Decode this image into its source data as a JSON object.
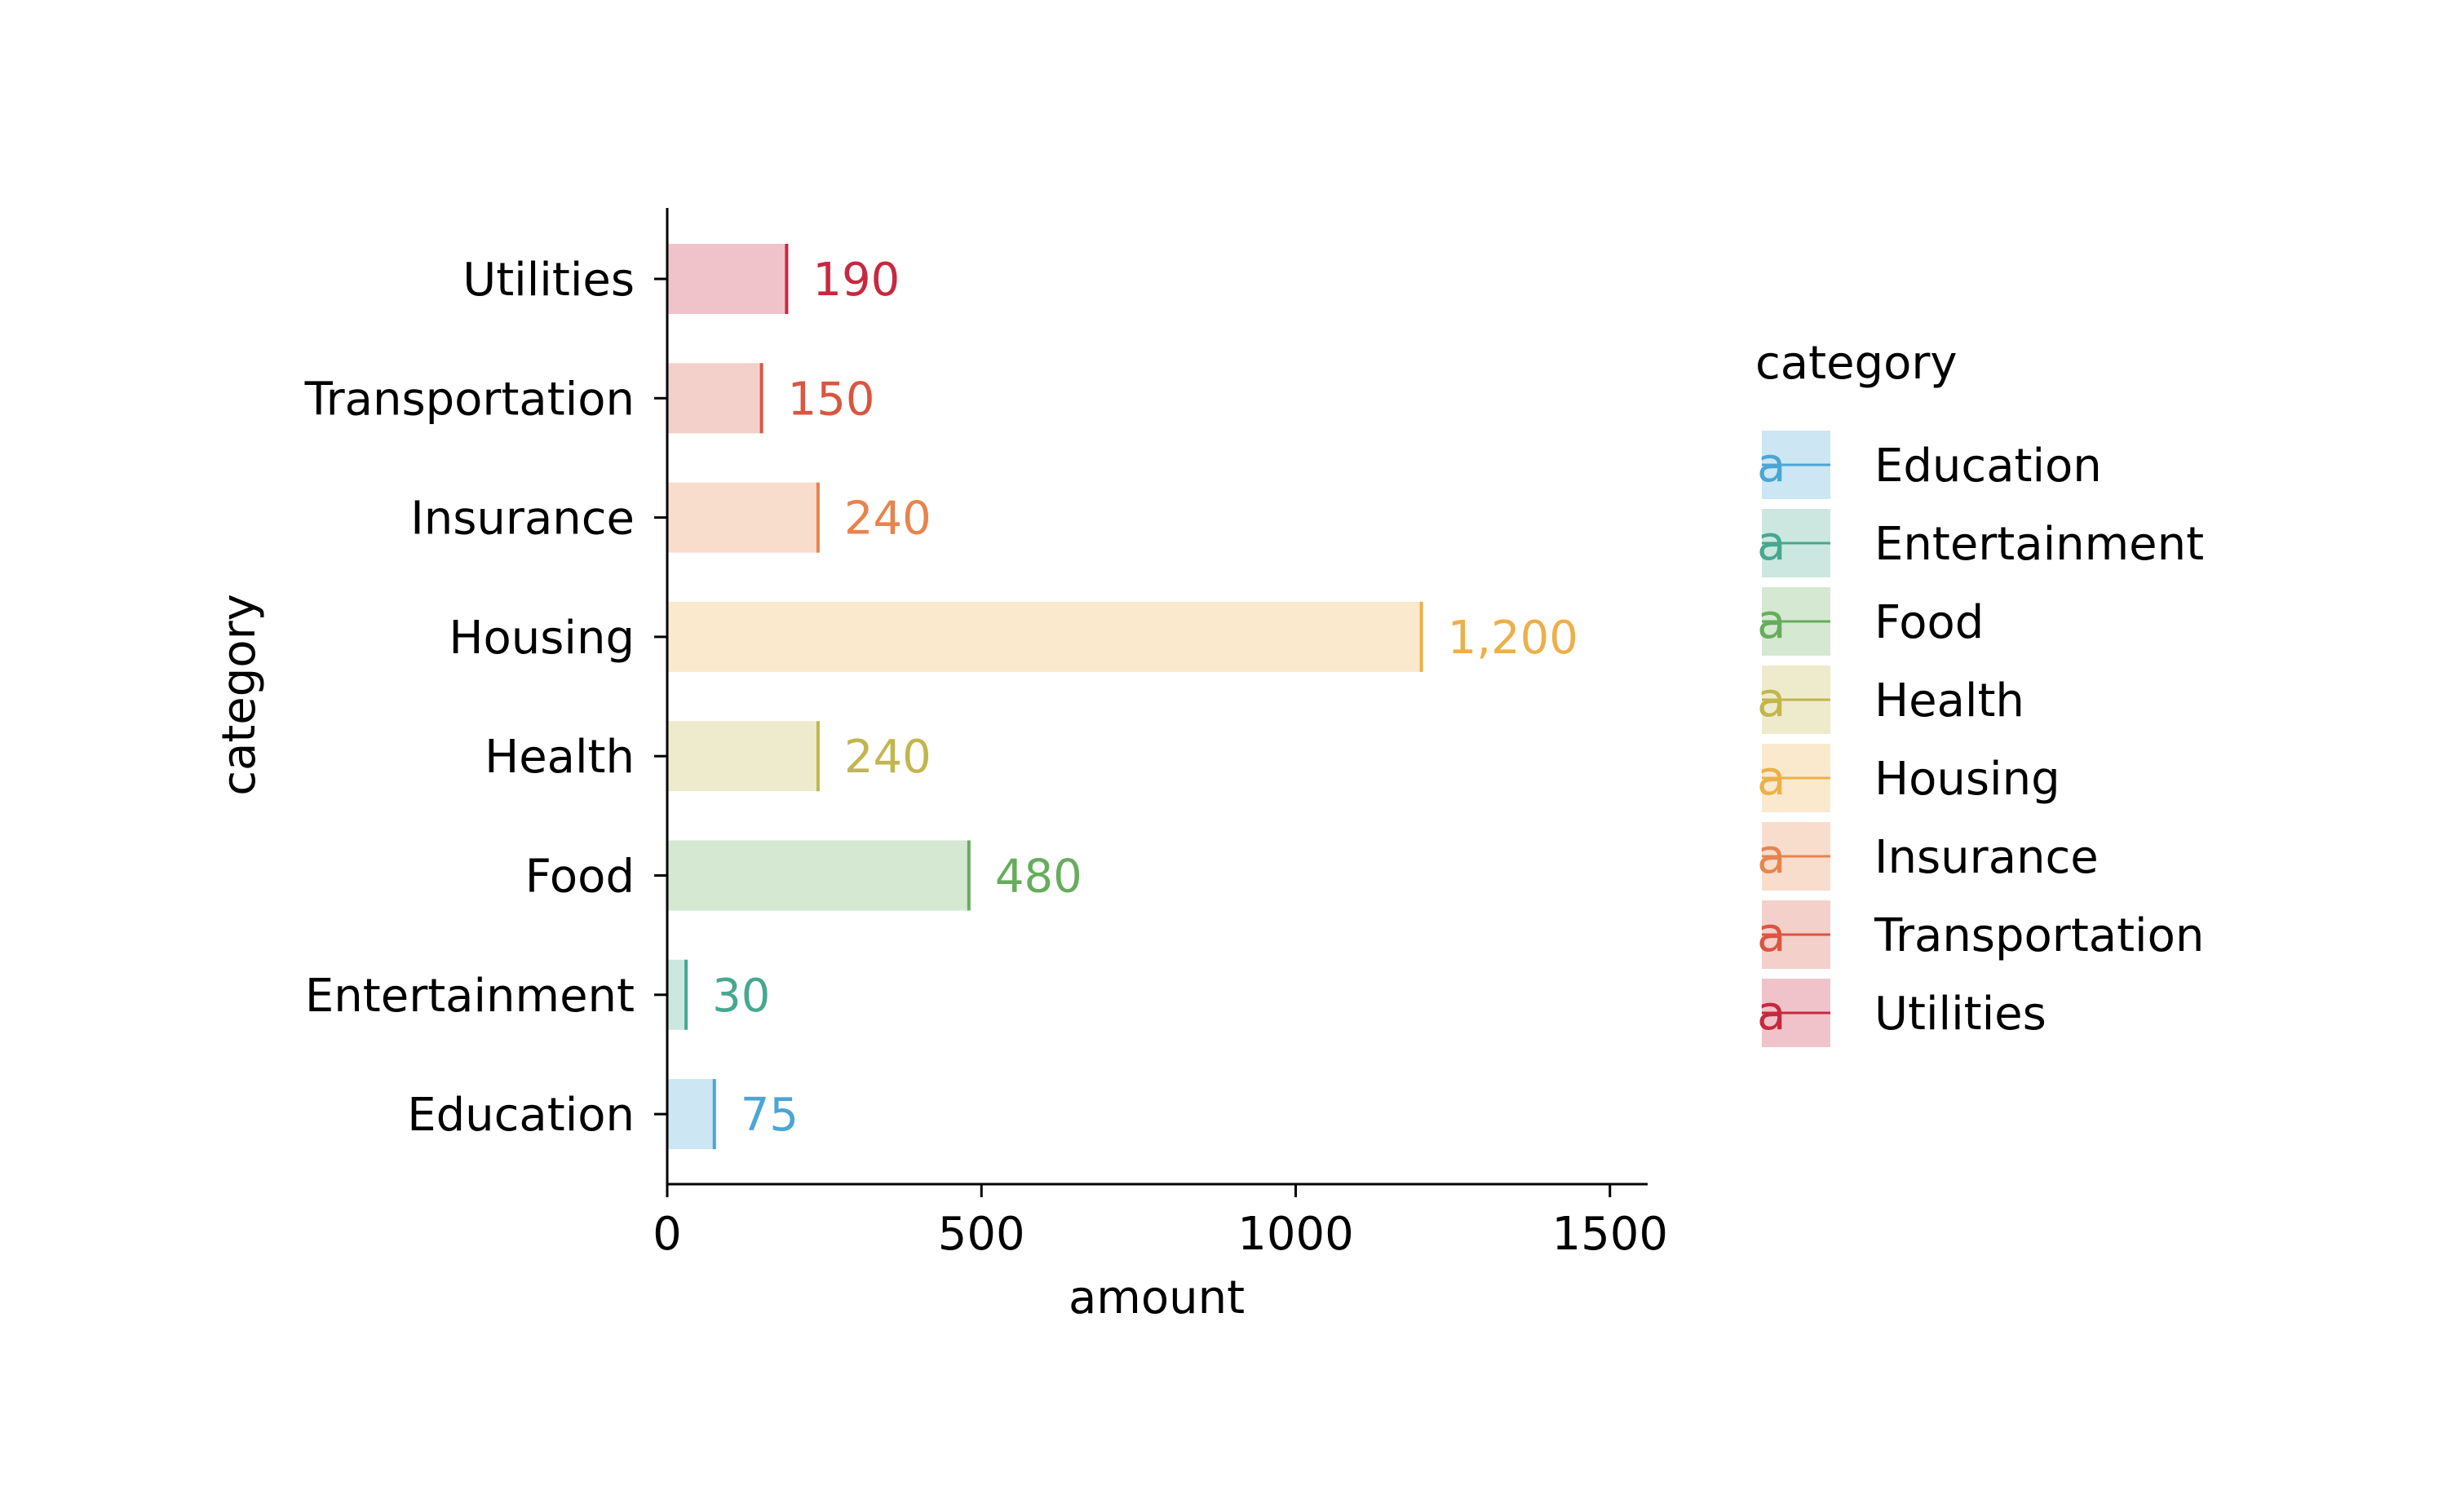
{
  "chart_data": {
    "type": "bar",
    "orientation": "horizontal",
    "categories": [
      "Education",
      "Entertainment",
      "Food",
      "Health",
      "Housing",
      "Insurance",
      "Transportation",
      "Utilities"
    ],
    "values": [
      75,
      30,
      480,
      240,
      1200,
      240,
      150,
      190
    ],
    "value_labels": [
      "75",
      "30",
      "480",
      "240",
      "1,200",
      "240",
      "150",
      "190"
    ],
    "colors": [
      "#4aa6d4",
      "#45a88f",
      "#66ad5c",
      "#c2b64c",
      "#ecb04a",
      "#e7844d",
      "#d95641",
      "#c8283f"
    ],
    "xlabel": "amount",
    "ylabel": "category",
    "xlim": [
      0,
      1560
    ],
    "xticks": [
      0,
      500,
      1000,
      1500
    ],
    "xtick_labels": [
      "0",
      "500",
      "1000",
      "1500"
    ],
    "grid": false,
    "legend": {
      "title": "category",
      "placement": "right",
      "entries": [
        "Education",
        "Entertainment",
        "Food",
        "Health",
        "Housing",
        "Insurance",
        "Transportation",
        "Utilities"
      ],
      "glyph": "a"
    }
  }
}
